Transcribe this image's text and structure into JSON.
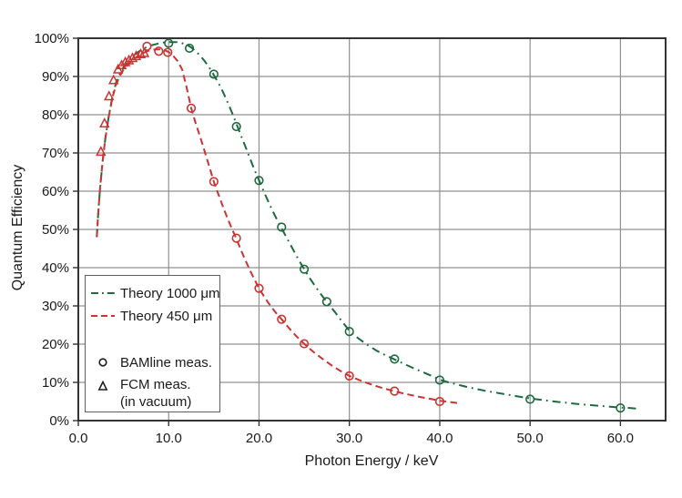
{
  "figure": {
    "background": "#ffffff"
  },
  "colors": {
    "theory_1000": "#1d6a3f",
    "theory_450": "#cc3333",
    "marker_legend": "#1a1a1a",
    "grid": "#909090",
    "frame": "#333333",
    "text": "#1a1a1a",
    "legend_border": "#5f5f5f"
  },
  "legend": {
    "items": [
      {
        "label": "Theory 1000 μm",
        "sample": "dash-dot-line",
        "color": "#1d6a3f"
      },
      {
        "label": "Theory 450 μm",
        "sample": "dashed-line",
        "color": "#cc3333"
      },
      {
        "label": "BAMline meas.",
        "sample": "circle-marker",
        "color": "#1a1a1a"
      },
      {
        "label": "FCM meas.",
        "label_line2": "(in vacuum)",
        "sample": "triangle-marker",
        "color": "#1a1a1a"
      }
    ]
  },
  "chart_data": {
    "type": "line",
    "title": "",
    "xlabel": "Photon Energy / keV",
    "ylabel": "Quantum Efficiency",
    "xlim": [
      0,
      65
    ],
    "ylim": [
      0,
      100
    ],
    "grid": true,
    "legend_position": "inside-middle-left",
    "x_ticks": {
      "values": [
        0,
        10,
        20,
        30,
        40,
        50,
        60
      ],
      "labels": [
        "0.0",
        "10.0",
        "20.0",
        "30.0",
        "40.0",
        "50.0",
        "60.0"
      ]
    },
    "y_ticks": {
      "values": [
        0,
        10,
        20,
        30,
        40,
        50,
        60,
        70,
        80,
        90,
        100
      ],
      "labels": [
        "0%",
        "10%",
        "20%",
        "30%",
        "40%",
        "50%",
        "60%",
        "70%",
        "80%",
        "90%",
        "100%"
      ]
    },
    "y_unit": "percent",
    "series": [
      {
        "id": "theory_1000",
        "name": "Theory 1000 μm",
        "kind": "line",
        "line_style": "dash-dot",
        "color": "#1d6a3f",
        "points": [
          [
            2.05,
            48
          ],
          [
            2.2,
            54
          ],
          [
            2.4,
            60.5
          ],
          [
            2.7,
            68
          ],
          [
            3,
            74
          ],
          [
            3.4,
            80
          ],
          [
            3.8,
            85
          ],
          [
            4.2,
            88.6
          ],
          [
            4.6,
            90.6
          ],
          [
            5,
            92.4
          ],
          [
            5.5,
            94
          ],
          [
            6,
            95.2
          ],
          [
            6.5,
            96.2
          ],
          [
            7,
            97
          ],
          [
            7.5,
            97.6
          ],
          [
            8,
            98.1
          ],
          [
            8.5,
            98.4
          ],
          [
            9,
            98.7
          ],
          [
            9.5,
            98.9
          ],
          [
            10,
            99
          ],
          [
            10.5,
            99
          ],
          [
            11,
            99
          ],
          [
            11.5,
            98.7
          ],
          [
            12,
            98.3
          ],
          [
            12.5,
            97.6
          ],
          [
            13,
            96.6
          ],
          [
            13.5,
            95.4
          ],
          [
            14,
            94
          ],
          [
            14.5,
            92.3
          ],
          [
            15,
            90.4
          ],
          [
            15.5,
            88.3
          ],
          [
            16,
            86
          ],
          [
            16.5,
            83.4
          ],
          [
            17,
            80.6
          ],
          [
            17.5,
            77.6
          ],
          [
            18,
            74.6
          ],
          [
            18.5,
            71.6
          ],
          [
            19,
            68.6
          ],
          [
            19.5,
            65.6
          ],
          [
            20,
            62.8
          ],
          [
            20.5,
            60.1
          ],
          [
            21,
            57.4
          ],
          [
            21.5,
            54.9
          ],
          [
            22,
            52.5
          ],
          [
            22.5,
            50.3
          ],
          [
            23,
            48.1
          ],
          [
            23.5,
            45.9
          ],
          [
            24,
            43.7
          ],
          [
            24.5,
            41.6
          ],
          [
            25,
            39.6
          ],
          [
            25.5,
            37.7
          ],
          [
            26,
            35.9
          ],
          [
            26.5,
            34.2
          ],
          [
            27,
            32.6
          ],
          [
            27.5,
            31.1
          ],
          [
            28,
            29.6
          ],
          [
            28.5,
            28.1
          ],
          [
            29,
            26.5
          ],
          [
            29.5,
            25
          ],
          [
            30,
            23.5
          ],
          [
            31,
            21.5
          ],
          [
            32,
            19.8
          ],
          [
            33,
            18.3
          ],
          [
            34,
            17.1
          ],
          [
            35,
            16
          ],
          [
            36,
            14.9
          ],
          [
            37,
            13.8
          ],
          [
            38,
            12.8
          ],
          [
            39,
            11.8
          ],
          [
            40,
            10.7
          ],
          [
            41,
            10
          ],
          [
            42,
            9.4
          ],
          [
            43,
            8.8
          ],
          [
            44,
            8.3
          ],
          [
            45,
            7.8
          ],
          [
            46,
            7.4
          ],
          [
            47,
            7
          ],
          [
            48,
            6.6
          ],
          [
            49,
            6.2
          ],
          [
            50,
            5.8
          ],
          [
            51,
            5.5
          ],
          [
            52,
            5.2
          ],
          [
            53,
            4.9
          ],
          [
            54,
            4.7
          ],
          [
            55,
            4.4
          ],
          [
            56,
            4.2
          ],
          [
            57,
            4
          ],
          [
            58,
            3.8
          ],
          [
            59,
            3.6
          ],
          [
            60,
            3.4
          ],
          [
            61,
            3.3
          ],
          [
            62,
            3.1
          ]
        ]
      },
      {
        "id": "theory_450",
        "name": "Theory 450 μm",
        "kind": "line",
        "line_style": "dashed",
        "color": "#cc3333",
        "points": [
          [
            2.05,
            48
          ],
          [
            2.2,
            54
          ],
          [
            2.4,
            60.5
          ],
          [
            2.7,
            68
          ],
          [
            3,
            74
          ],
          [
            3.4,
            79.8
          ],
          [
            3.8,
            84.7
          ],
          [
            4.2,
            88
          ],
          [
            4.6,
            90.1
          ],
          [
            5,
            91.8
          ],
          [
            5.5,
            93.2
          ],
          [
            6,
            94.3
          ],
          [
            6.5,
            95.2
          ],
          [
            7,
            95.9
          ],
          [
            7.5,
            96.5
          ],
          [
            8,
            96.9
          ],
          [
            8.5,
            97.1
          ],
          [
            9,
            97.1
          ],
          [
            9.5,
            96.9
          ],
          [
            10,
            96.4
          ],
          [
            10.5,
            95.4
          ],
          [
            11,
            94
          ],
          [
            11.5,
            91.8
          ],
          [
            12,
            87
          ],
          [
            12.5,
            81.7
          ],
          [
            13,
            77.7
          ],
          [
            13.5,
            74.1
          ],
          [
            14,
            70.3
          ],
          [
            14.5,
            66.4
          ],
          [
            15,
            62.5
          ],
          [
            15.5,
            59.2
          ],
          [
            16,
            56
          ],
          [
            16.5,
            53
          ],
          [
            17,
            50.2
          ],
          [
            17.5,
            47.5
          ],
          [
            18,
            44.6
          ],
          [
            18.5,
            41.9
          ],
          [
            19,
            39.3
          ],
          [
            19.5,
            36.9
          ],
          [
            20,
            34.6
          ],
          [
            20.5,
            32.7
          ],
          [
            21,
            30.9
          ],
          [
            21.5,
            29.3
          ],
          [
            22,
            27.8
          ],
          [
            22.5,
            26.5
          ],
          [
            23,
            25.1
          ],
          [
            23.5,
            23.7
          ],
          [
            24,
            22.4
          ],
          [
            24.5,
            21.2
          ],
          [
            25,
            20.1
          ],
          [
            26,
            18
          ],
          [
            27,
            16.2
          ],
          [
            28,
            14.5
          ],
          [
            29,
            13
          ],
          [
            30,
            11.7
          ],
          [
            31,
            10.7
          ],
          [
            32,
            9.8
          ],
          [
            33,
            9
          ],
          [
            34,
            8.3
          ],
          [
            35,
            7.7
          ],
          [
            36,
            7.1
          ],
          [
            37,
            6.6
          ],
          [
            38,
            6.1
          ],
          [
            39,
            5.7
          ],
          [
            40,
            5.2
          ],
          [
            41,
            4.9
          ],
          [
            42,
            4.6
          ]
        ]
      },
      {
        "id": "bamline_1000",
        "name": "BAMline meas.",
        "kind": "scatter",
        "marker": "circle",
        "color": "#1d6a3f",
        "points": [
          [
            10,
            98.7
          ],
          [
            12.3,
            97.4
          ],
          [
            15,
            90.6
          ],
          [
            17.5,
            76.9
          ],
          [
            20,
            62.8
          ],
          [
            22.5,
            50.6
          ],
          [
            25,
            39.6
          ],
          [
            27.5,
            31.1
          ],
          [
            30,
            23.3
          ],
          [
            35,
            16.1
          ],
          [
            40,
            10.6
          ],
          [
            50,
            5.6
          ],
          [
            60,
            3.3
          ]
        ]
      },
      {
        "id": "bamline_450",
        "name": "BAMline meas.",
        "kind": "scatter",
        "marker": "circle",
        "color": "#cc3333",
        "points": [
          [
            7.6,
            97.9
          ],
          [
            8.9,
            96.6
          ],
          [
            9.9,
            96.3
          ],
          [
            12.5,
            81.7
          ],
          [
            15,
            62.5
          ],
          [
            17.5,
            47.7
          ],
          [
            20,
            34.6
          ],
          [
            22.5,
            26.5
          ],
          [
            25,
            20.1
          ],
          [
            30,
            11.7
          ],
          [
            35,
            7.7
          ],
          [
            40,
            5
          ]
        ]
      },
      {
        "id": "fcm_450",
        "name": "FCM meas. (in vacuum)",
        "kind": "scatter",
        "marker": "triangle",
        "color": "#cc3333",
        "points": [
          [
            2.5,
            70.3
          ],
          [
            2.9,
            77.7
          ],
          [
            3.4,
            84.8
          ],
          [
            3.9,
            89
          ],
          [
            4.4,
            91.8
          ],
          [
            4.8,
            92.9
          ],
          [
            5.2,
            93.7
          ],
          [
            5.6,
            94.2
          ],
          [
            6,
            94.8
          ],
          [
            6.4,
            95.3
          ],
          [
            6.9,
            95.8
          ],
          [
            7.3,
            96.1
          ]
        ]
      }
    ]
  }
}
